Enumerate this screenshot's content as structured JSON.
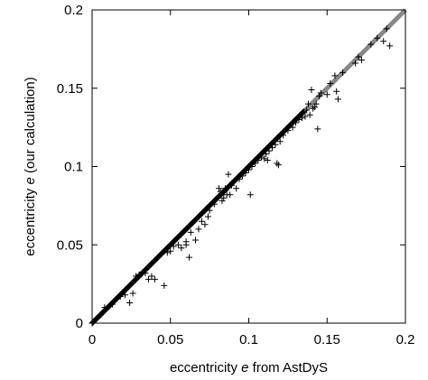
{
  "chart_data": {
    "type": "scatter",
    "title": "",
    "xlabel": {
      "pre": "eccentricity ",
      "var": "e",
      "post": " from AstDyS"
    },
    "ylabel": {
      "pre": "eccentricity ",
      "var": "e",
      "post": " (our calculation)"
    },
    "xlim": [
      0,
      0.2
    ],
    "ylim": [
      0,
      0.2
    ],
    "xticks": [
      0,
      0.05,
      0.1,
      0.15,
      0.2
    ],
    "yticks": [
      0,
      0.05,
      0.1,
      0.15,
      0.2
    ],
    "xtick_labels": [
      "0",
      "0.05",
      "0.1",
      "0.15",
      "0.2"
    ],
    "ytick_labels": [
      "0",
      "0.05",
      "0.1",
      "0.15",
      "0.2"
    ],
    "grid": false,
    "legend": null,
    "reference_line": {
      "type": "y=x",
      "color": "#888888"
    },
    "marker": "+",
    "marker_color": "#000000",
    "series": [
      {
        "dense_band": {
          "x_from": 0.0,
          "x_to": 0.135,
          "step": 0.00045
        },
        "points": [
          [
            0.003,
            0.003
          ],
          [
            0.008,
            0.01
          ],
          [
            0.013,
            0.012
          ],
          [
            0.018,
            0.017
          ],
          [
            0.021,
            0.018
          ],
          [
            0.024,
            0.013
          ],
          [
            0.026,
            0.019
          ],
          [
            0.028,
            0.03
          ],
          [
            0.03,
            0.031
          ],
          [
            0.034,
            0.032
          ],
          [
            0.036,
            0.028
          ],
          [
            0.038,
            0.03
          ],
          [
            0.04,
            0.028
          ],
          [
            0.046,
            0.024
          ],
          [
            0.048,
            0.045
          ],
          [
            0.05,
            0.046
          ],
          [
            0.052,
            0.049
          ],
          [
            0.055,
            0.05
          ],
          [
            0.057,
            0.048
          ],
          [
            0.058,
            0.058
          ],
          [
            0.06,
            0.052
          ],
          [
            0.06,
            0.05
          ],
          [
            0.062,
            0.042
          ],
          [
            0.063,
            0.058
          ],
          [
            0.066,
            0.053
          ],
          [
            0.068,
            0.06
          ],
          [
            0.07,
            0.065
          ],
          [
            0.072,
            0.063
          ],
          [
            0.074,
            0.068
          ],
          [
            0.075,
            0.072
          ],
          [
            0.078,
            0.076
          ],
          [
            0.08,
            0.08
          ],
          [
            0.081,
            0.086
          ],
          [
            0.082,
            0.084
          ],
          [
            0.083,
            0.078
          ],
          [
            0.084,
            0.08
          ],
          [
            0.085,
            0.086
          ],
          [
            0.086,
            0.082
          ],
          [
            0.087,
            0.095
          ],
          [
            0.088,
            0.082
          ],
          [
            0.089,
            0.088
          ],
          [
            0.09,
            0.09
          ],
          [
            0.092,
            0.086
          ],
          [
            0.094,
            0.092
          ],
          [
            0.096,
            0.094
          ],
          [
            0.098,
            0.096
          ],
          [
            0.1,
            0.098
          ],
          [
            0.101,
            0.082
          ],
          [
            0.102,
            0.1
          ],
          [
            0.104,
            0.102
          ],
          [
            0.106,
            0.104
          ],
          [
            0.108,
            0.106
          ],
          [
            0.11,
            0.105
          ],
          [
            0.111,
            0.108
          ],
          [
            0.112,
            0.104
          ],
          [
            0.113,
            0.11
          ],
          [
            0.115,
            0.112
          ],
          [
            0.117,
            0.114
          ],
          [
            0.118,
            0.102
          ],
          [
            0.119,
            0.101
          ],
          [
            0.12,
            0.116
          ],
          [
            0.122,
            0.12
          ],
          [
            0.125,
            0.123
          ],
          [
            0.128,
            0.125
          ],
          [
            0.13,
            0.128
          ],
          [
            0.132,
            0.13
          ],
          [
            0.134,
            0.131
          ],
          [
            0.136,
            0.132
          ],
          [
            0.137,
            0.136
          ],
          [
            0.138,
            0.14
          ],
          [
            0.139,
            0.133
          ],
          [
            0.14,
            0.149
          ],
          [
            0.141,
            0.137
          ],
          [
            0.142,
            0.138
          ],
          [
            0.143,
            0.14
          ],
          [
            0.144,
            0.124
          ],
          [
            0.145,
            0.145
          ],
          [
            0.146,
            0.147
          ],
          [
            0.15,
            0.146
          ],
          [
            0.152,
            0.153
          ],
          [
            0.155,
            0.158
          ],
          [
            0.156,
            0.148
          ],
          [
            0.157,
            0.143
          ],
          [
            0.16,
            0.16
          ],
          [
            0.168,
            0.166
          ],
          [
            0.17,
            0.17
          ],
          [
            0.172,
            0.168
          ],
          [
            0.178,
            0.178
          ],
          [
            0.182,
            0.182
          ],
          [
            0.186,
            0.18
          ],
          [
            0.188,
            0.188
          ],
          [
            0.19,
            0.177
          ]
        ]
      }
    ]
  }
}
